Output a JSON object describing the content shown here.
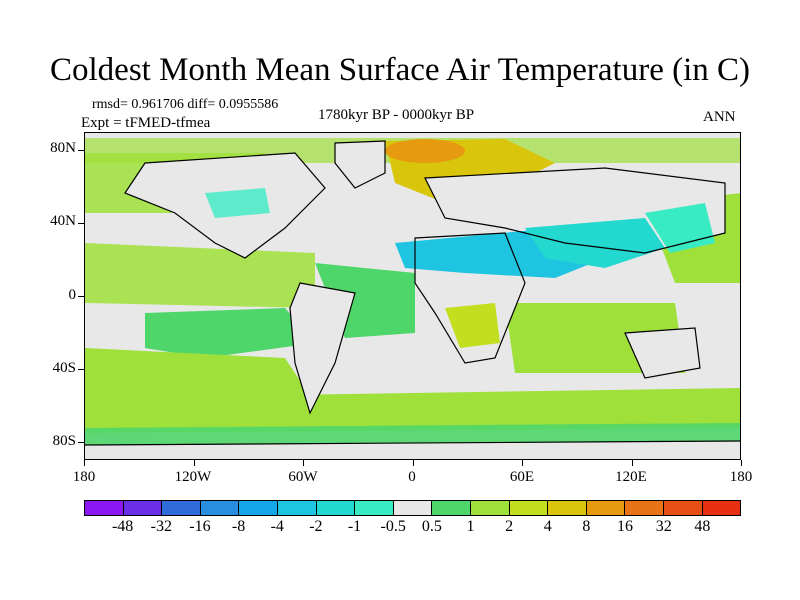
{
  "title": "Coldest Month Mean Surface Air Temperature (in C)",
  "stats_line": "rmsd= 0.961706 diff= 0.0955586",
  "expt_line": "Expt = tFMED-tfmea",
  "period": "1780kyr BP - 0000kyr BP",
  "season": "ANN",
  "chart_data": {
    "type": "heatmap",
    "title": "Coldest Month Mean Surface Air Temperature (in C)",
    "subtitle": "1780kyr BP - 0000kyr BP",
    "units": "C",
    "x_range": [
      -180,
      180
    ],
    "y_range": [
      -90,
      90
    ],
    "lat_tick_labels": [
      "80N",
      "40N",
      "0",
      "40S",
      "80S"
    ],
    "lat_tick_values": [
      80,
      40,
      0,
      -40,
      -80
    ],
    "lon_tick_labels": [
      "180",
      "120W",
      "60W",
      "0",
      "60E",
      "120E",
      "180"
    ],
    "lon_tick_values": [
      -180,
      -120,
      -60,
      0,
      60,
      120,
      180
    ],
    "colorbar": {
      "labels": [
        "-48",
        "-32",
        "-16",
        "-8",
        "-4",
        "-2",
        "-1",
        "-0.5",
        "0.5",
        "1",
        "2",
        "4",
        "8",
        "16",
        "32",
        "48"
      ],
      "colors": [
        "#8c17f2",
        "#6a2fe6",
        "#2f6bd9",
        "#2a8ee0",
        "#16a7e8",
        "#1fc4e0",
        "#22d8cf",
        "#39ebc3",
        "#e8e8e8",
        "#4fd66a",
        "#9fe03a",
        "#c2de1e",
        "#d9c60c",
        "#e59a10",
        "#e77518",
        "#e65016",
        "#e63010"
      ]
    },
    "dominant_color_by_region": {
      "land": "#e8e8e8",
      "north_atlantic_arctic": "#e59a10",
      "southern_ocean": "#9fe03a",
      "north_africa_south_asia": "#1fc4e0",
      "tropical_pacific": "#4fd66a"
    }
  }
}
